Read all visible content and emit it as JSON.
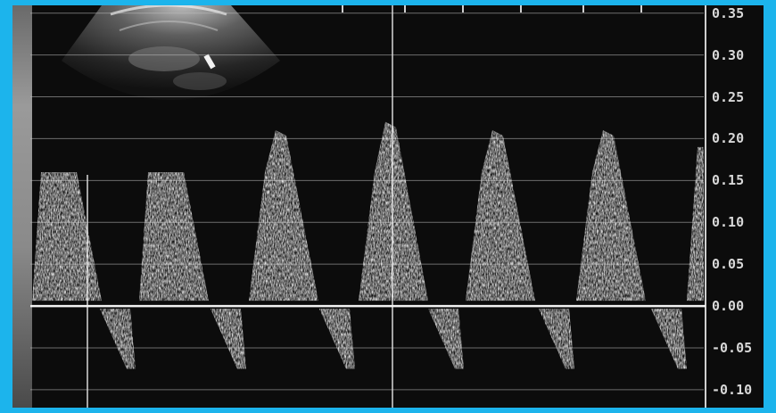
{
  "velocity_scale": {
    "labels": [
      "0.35",
      "0.30",
      "0.25",
      "0.20",
      "0.15",
      "0.10",
      "0.05",
      "0.00",
      "-0.05",
      "-0.10"
    ],
    "ticks": [
      0.35,
      0.3,
      0.25,
      0.2,
      0.15,
      0.1,
      0.05,
      0.0,
      -0.05,
      -0.1
    ],
    "range": [
      -0.115,
      0.355
    ]
  },
  "colors": {
    "border": "#1cb4ec",
    "background": "#0c0c0c",
    "trace": "#e6e6e6",
    "gridline": "#bdbdbd"
  },
  "icons": [
    "ultrasound-sector-thumbnail"
  ]
}
